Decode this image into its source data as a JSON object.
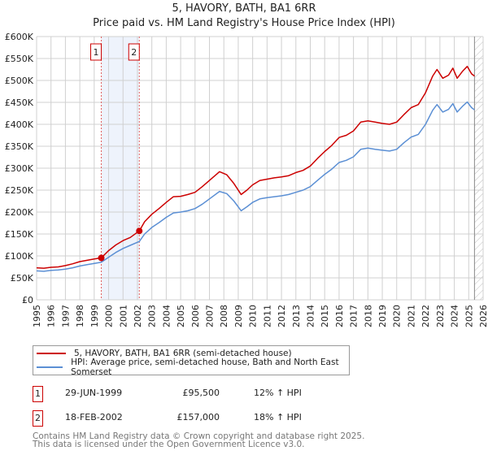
{
  "chart_data": {
    "type": "line",
    "title": "5, HAVORY, BATH, BA1 6RR",
    "subtitle": "Price paid vs. HM Land Registry's House Price Index (HPI)",
    "xlabel": "",
    "ylabel": "",
    "xlim": [
      1995,
      2026
    ],
    "ylim": [
      0,
      600000
    ],
    "x_ticks": [
      "1995",
      "1996",
      "1997",
      "1998",
      "1999",
      "2000",
      "2001",
      "2002",
      "2003",
      "2004",
      "2005",
      "2006",
      "2007",
      "2008",
      "2009",
      "2010",
      "2011",
      "2012",
      "2013",
      "2014",
      "2015",
      "2016",
      "2017",
      "2018",
      "2019",
      "2020",
      "2021",
      "2022",
      "2023",
      "2024",
      "2025",
      "2026"
    ],
    "y_ticks": [
      {
        "value": 0,
        "label": "£0"
      },
      {
        "value": 50000,
        "label": "£50K"
      },
      {
        "value": 100000,
        "label": "£100K"
      },
      {
        "value": 150000,
        "label": "£150K"
      },
      {
        "value": 200000,
        "label": "£200K"
      },
      {
        "value": 250000,
        "label": "£250K"
      },
      {
        "value": 300000,
        "label": "£300K"
      },
      {
        "value": 350000,
        "label": "£350K"
      },
      {
        "value": 400000,
        "label": "£400K"
      },
      {
        "value": 450000,
        "label": "£450K"
      },
      {
        "value": 500000,
        "label": "£500K"
      },
      {
        "value": 550000,
        "label": "£550K"
      },
      {
        "value": 600000,
        "label": "£600K"
      }
    ],
    "grid": true,
    "series": [
      {
        "name": "5, HAVORY, BATH, BA1 6RR (semi-detached house)",
        "color": "#cc0000",
        "points": [
          [
            1995,
            73000
          ],
          [
            1995.5,
            72000
          ],
          [
            1996,
            74000
          ],
          [
            1996.5,
            75000
          ],
          [
            1997,
            78000
          ],
          [
            1997.5,
            82000
          ],
          [
            1998,
            87000
          ],
          [
            1998.5,
            90000
          ],
          [
            1999,
            93000
          ],
          [
            1999.49,
            95500
          ],
          [
            2000,
            112000
          ],
          [
            2000.5,
            125000
          ],
          [
            2001,
            135000
          ],
          [
            2001.5,
            142000
          ],
          [
            2002.13,
            157000
          ],
          [
            2002.5,
            178000
          ],
          [
            2003,
            195000
          ],
          [
            2003.5,
            208000
          ],
          [
            2004,
            222000
          ],
          [
            2004.5,
            235000
          ],
          [
            2005,
            236000
          ],
          [
            2005.5,
            240000
          ],
          [
            2006,
            245000
          ],
          [
            2006.5,
            258000
          ],
          [
            2007,
            272000
          ],
          [
            2007.7,
            292000
          ],
          [
            2008.2,
            285000
          ],
          [
            2008.7,
            265000
          ],
          [
            2009.2,
            240000
          ],
          [
            2009.6,
            250000
          ],
          [
            2010,
            262000
          ],
          [
            2010.5,
            272000
          ],
          [
            2011,
            275000
          ],
          [
            2011.5,
            278000
          ],
          [
            2012,
            280000
          ],
          [
            2012.5,
            283000
          ],
          [
            2013,
            290000
          ],
          [
            2013.5,
            295000
          ],
          [
            2014,
            305000
          ],
          [
            2014.5,
            322000
          ],
          [
            2015,
            338000
          ],
          [
            2015.5,
            352000
          ],
          [
            2016,
            370000
          ],
          [
            2016.5,
            375000
          ],
          [
            2017,
            385000
          ],
          [
            2017.5,
            405000
          ],
          [
            2018,
            408000
          ],
          [
            2018.5,
            405000
          ],
          [
            2019,
            402000
          ],
          [
            2019.5,
            400000
          ],
          [
            2020,
            405000
          ],
          [
            2020.5,
            422000
          ],
          [
            2021,
            438000
          ],
          [
            2021.5,
            445000
          ],
          [
            2022,
            472000
          ],
          [
            2022.5,
            510000
          ],
          [
            2022.8,
            525000
          ],
          [
            2023.2,
            505000
          ],
          [
            2023.6,
            512000
          ],
          [
            2023.9,
            528000
          ],
          [
            2024.2,
            505000
          ],
          [
            2024.6,
            522000
          ],
          [
            2024.9,
            532000
          ],
          [
            2025.2,
            515000
          ],
          [
            2025.4,
            510000
          ]
        ]
      },
      {
        "name": "HPI: Average price, semi-detached house, Bath and North East Somerset",
        "color": "#5b8fd4",
        "points": [
          [
            1995,
            66000
          ],
          [
            1995.5,
            65000
          ],
          [
            1996,
            67000
          ],
          [
            1996.5,
            68000
          ],
          [
            1997,
            70000
          ],
          [
            1997.5,
            73000
          ],
          [
            1998,
            77000
          ],
          [
            1998.5,
            80000
          ],
          [
            1999,
            83000
          ],
          [
            1999.49,
            85500
          ],
          [
            2000,
            97000
          ],
          [
            2000.5,
            108000
          ],
          [
            2001,
            117000
          ],
          [
            2001.5,
            124000
          ],
          [
            2002.13,
            133000
          ],
          [
            2002.5,
            150000
          ],
          [
            2003,
            165000
          ],
          [
            2003.5,
            176000
          ],
          [
            2004,
            188000
          ],
          [
            2004.5,
            198000
          ],
          [
            2005,
            200000
          ],
          [
            2005.5,
            203000
          ],
          [
            2006,
            208000
          ],
          [
            2006.5,
            218000
          ],
          [
            2007,
            230000
          ],
          [
            2007.7,
            247000
          ],
          [
            2008.2,
            242000
          ],
          [
            2008.7,
            225000
          ],
          [
            2009.2,
            203000
          ],
          [
            2009.6,
            212000
          ],
          [
            2010,
            222000
          ],
          [
            2010.5,
            230000
          ],
          [
            2011,
            233000
          ],
          [
            2011.5,
            235000
          ],
          [
            2012,
            237000
          ],
          [
            2012.5,
            240000
          ],
          [
            2013,
            245000
          ],
          [
            2013.5,
            250000
          ],
          [
            2014,
            258000
          ],
          [
            2014.5,
            272000
          ],
          [
            2015,
            286000
          ],
          [
            2015.5,
            298000
          ],
          [
            2016,
            313000
          ],
          [
            2016.5,
            318000
          ],
          [
            2017,
            326000
          ],
          [
            2017.5,
            343000
          ],
          [
            2018,
            346000
          ],
          [
            2018.5,
            343000
          ],
          [
            2019,
            341000
          ],
          [
            2019.5,
            339000
          ],
          [
            2020,
            343000
          ],
          [
            2020.5,
            358000
          ],
          [
            2021,
            371000
          ],
          [
            2021.5,
            377000
          ],
          [
            2022,
            400000
          ],
          [
            2022.5,
            432000
          ],
          [
            2022.8,
            445000
          ],
          [
            2023.2,
            428000
          ],
          [
            2023.6,
            434000
          ],
          [
            2023.9,
            447000
          ],
          [
            2024.2,
            428000
          ],
          [
            2024.6,
            442000
          ],
          [
            2024.9,
            451000
          ],
          [
            2025.2,
            438000
          ],
          [
            2025.4,
            433000
          ]
        ]
      }
    ],
    "transactions": [
      {
        "id": "1",
        "x": 1999.49,
        "value": 95500
      },
      {
        "id": "2",
        "x": 2002.13,
        "value": 157000
      }
    ],
    "forecast_start": 2025.4,
    "legend_position": "below"
  },
  "legend": {
    "property": "5, HAVORY, BATH, BA1 6RR (semi-detached house)",
    "hpi": "HPI: Average price, semi-detached house, Bath and North East Somerset"
  },
  "transactions_table": [
    {
      "id": "1",
      "date": "29-JUN-1999",
      "price": "£95,500",
      "hpi": "12% ↑ HPI"
    },
    {
      "id": "2",
      "date": "18-FEB-2002",
      "price": "£157,000",
      "hpi": "18% ↑ HPI"
    }
  ],
  "footer": {
    "line1": "Contains HM Land Registry data © Crown copyright and database right 2025.",
    "line2": "This data is licensed under the Open Government Licence v3.0."
  }
}
